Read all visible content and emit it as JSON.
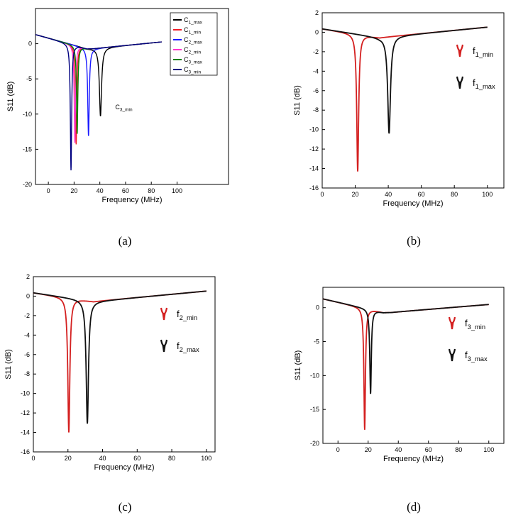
{
  "figure": {
    "panel_labels": [
      "(a)",
      "(b)",
      "(c)",
      "(d)"
    ]
  },
  "chart_data": [
    {
      "panel": "a",
      "type": "line",
      "xlabel": "Frequency (MHz)",
      "ylabel": "S11 (dB)",
      "xlim": [
        -10,
        140
      ],
      "ylim": [
        -20,
        5
      ],
      "xticks": [
        0,
        20,
        40,
        60,
        80,
        100
      ],
      "yticks": [
        0,
        -5,
        -10,
        -15,
        -20
      ],
      "grid": false,
      "legend_position": "top-right",
      "annotation": {
        "text": "C",
        "sub": "3_min",
        "x": 52,
        "y": -9.3
      },
      "series": [
        {
          "name": "C",
          "sub": "1_max",
          "color": "#000000",
          "f0": 40.5,
          "depth": -10.3,
          "w": 1.0
        },
        {
          "name": "C",
          "sub": "1_min",
          "color": "#ee1c25",
          "f0": 21.6,
          "depth": -14.3,
          "w": 0.6
        },
        {
          "name": "C",
          "sub": "2_max",
          "color": "#1a1aff",
          "f0": 31.2,
          "depth": -13.1,
          "w": 0.7
        },
        {
          "name": "C",
          "sub": "2_min",
          "color": "#ff33cc",
          "f0": 20.6,
          "depth": -14.1,
          "w": 0.6
        },
        {
          "name": "C",
          "sub": "3_max",
          "color": "#008000",
          "f0": 22.4,
          "depth": -12.8,
          "w": 0.6
        },
        {
          "name": "C",
          "sub": "3_min",
          "color": "#000080",
          "f0": 17.6,
          "depth": -18.0,
          "w": 0.6
        }
      ]
    },
    {
      "panel": "b",
      "type": "line",
      "xlabel": "Frequency (MHz)",
      "ylabel": "S11 (dB)",
      "xlim": [
        0,
        110
      ],
      "ylim": [
        -16,
        2
      ],
      "xticks": [
        0,
        20,
        40,
        60,
        80,
        100
      ],
      "yticks": [
        2,
        0,
        -2,
        -4,
        -6,
        -8,
        -10,
        -12,
        -14,
        -16
      ],
      "grid": false,
      "legend_position": "right",
      "series": [
        {
          "name": "f",
          "sub": "1_min",
          "color": "#d42020",
          "f0": 21.5,
          "depth": -14.3,
          "w": 0.7
        },
        {
          "name": "f",
          "sub": "1_max",
          "color": "#111111",
          "f0": 40.5,
          "depth": -10.4,
          "w": 1.0
        }
      ]
    },
    {
      "panel": "c",
      "type": "line",
      "xlabel": "Frequency (MHz)",
      "ylabel": "S11 (dB)",
      "xlim": [
        0,
        105
      ],
      "ylim": [
        -16,
        2
      ],
      "xticks": [
        0,
        20,
        40,
        60,
        80,
        100
      ],
      "yticks": [
        2,
        0,
        -2,
        -4,
        -6,
        -8,
        -10,
        -12,
        -14,
        -16
      ],
      "grid": false,
      "legend_position": "right",
      "series": [
        {
          "name": "f",
          "sub": "2_min",
          "color": "#d42020",
          "f0": 20.5,
          "depth": -14.0,
          "w": 0.7
        },
        {
          "name": "f",
          "sub": "2_max",
          "color": "#111111",
          "f0": 31.2,
          "depth": -13.1,
          "w": 0.8
        }
      ]
    },
    {
      "panel": "d",
      "type": "line",
      "xlabel": "Frequency (MHz)",
      "ylabel": "S11 (dB)",
      "xlim": [
        -10,
        110
      ],
      "ylim": [
        -20,
        3
      ],
      "xticks": [
        0,
        20,
        40,
        60,
        80,
        100
      ],
      "yticks": [
        0,
        -5,
        -10,
        -15,
        -20
      ],
      "grid": false,
      "legend_position": "right",
      "series": [
        {
          "name": "f",
          "sub": "3_min",
          "color": "#d42020",
          "f0": 17.7,
          "depth": -18.0,
          "w": 0.6
        },
        {
          "name": "f",
          "sub": "3_max",
          "color": "#111111",
          "f0": 21.6,
          "depth": -12.7,
          "w": 0.6
        }
      ]
    }
  ]
}
